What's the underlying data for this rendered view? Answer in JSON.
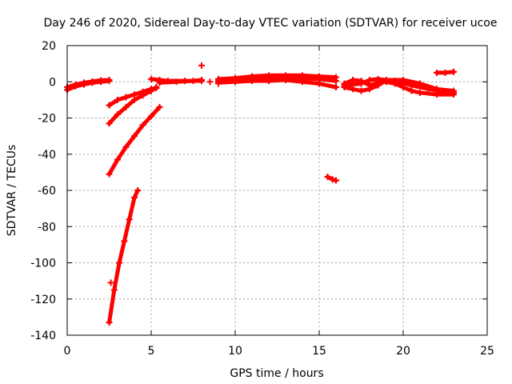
{
  "chart_data": {
    "type": "scatter",
    "title": "Day 246 of 2020, Sidereal Day-to-day VTEC variation (SDTVAR) for receiver ucoe",
    "xlabel": "GPS time / hours",
    "ylabel": "SDTVAR / TECUs",
    "xlim": [
      0,
      25
    ],
    "ylim": [
      -140,
      20
    ],
    "xticks": [
      0,
      5,
      10,
      15,
      20,
      25
    ],
    "yticks": [
      20,
      0,
      -20,
      -40,
      -60,
      -80,
      -100,
      -120,
      -140
    ],
    "grid": true,
    "marker_color": "#ff0000",
    "series": [
      {
        "segments": [
          [
            [
              0.0,
              -4.5
            ],
            [
              0.5,
              -2.5
            ],
            [
              1.0,
              -1.5
            ],
            [
              1.5,
              -0.5
            ],
            [
              2.0,
              0.0
            ],
            [
              2.5,
              0.5
            ]
          ],
          [
            [
              0.0,
              -3.0
            ],
            [
              0.5,
              -1.5
            ],
            [
              1.0,
              -0.5
            ],
            [
              1.5,
              0.2
            ],
            [
              2.0,
              0.8
            ],
            [
              2.5,
              1.0
            ]
          ],
          [
            [
              2.5,
              -13.0
            ],
            [
              3.0,
              -10.0
            ],
            [
              3.5,
              -8.5
            ],
            [
              4.0,
              -7.0
            ],
            [
              4.5,
              -5.5
            ],
            [
              5.0,
              -4.0
            ],
            [
              5.3,
              -3.5
            ]
          ],
          [
            [
              2.5,
              -23.0
            ],
            [
              3.0,
              -18.0
            ],
            [
              3.5,
              -14.0
            ],
            [
              4.0,
              -10.0
            ],
            [
              4.5,
              -7.5
            ],
            [
              5.0,
              -5.0
            ],
            [
              5.3,
              -3.0
            ]
          ],
          [
            [
              2.5,
              -51.0
            ],
            [
              3.0,
              -43.0
            ],
            [
              3.5,
              -36.0
            ],
            [
              4.0,
              -30.0
            ],
            [
              4.5,
              -24.0
            ],
            [
              5.0,
              -19.0
            ],
            [
              5.5,
              -14.0
            ]
          ],
          [
            [
              2.5,
              -133.0
            ],
            [
              2.8,
              -115.0
            ],
            [
              3.1,
              -100.0
            ],
            [
              3.4,
              -88.0
            ],
            [
              3.7,
              -76.0
            ],
            [
              4.0,
              -64.0
            ],
            [
              4.2,
              -60.0
            ]
          ],
          [
            [
              5.0,
              1.5
            ],
            [
              5.5,
              1.0
            ],
            [
              6.0,
              0.5
            ],
            [
              7.0,
              0.5
            ],
            [
              8.0,
              0.5
            ]
          ],
          [
            [
              5.5,
              -0.5
            ],
            [
              6.5,
              0.0
            ],
            [
              7.5,
              0.5
            ],
            [
              8.0,
              1.0
            ]
          ],
          [
            [
              9.0,
              0.5
            ],
            [
              10.0,
              1.0
            ],
            [
              11.0,
              1.5
            ],
            [
              12.0,
              2.0
            ],
            [
              13.0,
              2.5
            ],
            [
              14.0,
              2.0
            ],
            [
              15.0,
              1.5
            ],
            [
              16.0,
              0.5
            ]
          ],
          [
            [
              9.0,
              1.5
            ],
            [
              10.0,
              2.0
            ],
            [
              11.0,
              3.0
            ],
            [
              12.0,
              3.5
            ],
            [
              13.0,
              3.5
            ],
            [
              14.0,
              3.5
            ],
            [
              15.0,
              3.0
            ],
            [
              16.0,
              2.5
            ]
          ],
          [
            [
              9.0,
              -0.5
            ],
            [
              10.0,
              0.0
            ],
            [
              11.0,
              0.5
            ],
            [
              12.0,
              0.5
            ],
            [
              13.0,
              1.0
            ],
            [
              14.0,
              0.0
            ],
            [
              15.0,
              -1.0
            ],
            [
              16.0,
              -3.0
            ]
          ],
          [
            [
              15.5,
              -52.5
            ],
            [
              15.8,
              -54.0
            ],
            [
              16.0,
              -54.5
            ]
          ],
          [
            [
              16.5,
              -1.0
            ],
            [
              17.0,
              1.0
            ],
            [
              17.5,
              0.5
            ],
            [
              18.0,
              -2.0
            ],
            [
              18.5,
              -0.5
            ],
            [
              19.0,
              0.0
            ],
            [
              19.5,
              -1.0
            ],
            [
              20.0,
              -3.0
            ],
            [
              20.5,
              -5.0
            ],
            [
              21.0,
              -6.0
            ],
            [
              22.0,
              -7.0
            ],
            [
              23.0,
              -7.0
            ]
          ],
          [
            [
              16.5,
              -3.0
            ],
            [
              17.0,
              -4.0
            ],
            [
              17.5,
              -5.0
            ],
            [
              18.0,
              -4.0
            ],
            [
              18.5,
              -2.0
            ],
            [
              19.0,
              1.0
            ],
            [
              20.0,
              1.0
            ],
            [
              21.0,
              -1.0
            ],
            [
              22.0,
              -4.0
            ],
            [
              23.0,
              -5.0
            ]
          ],
          [
            [
              16.5,
              -2.0
            ],
            [
              17.5,
              -1.0
            ],
            [
              18.0,
              1.0
            ],
            [
              18.5,
              1.5
            ],
            [
              19.5,
              0.5
            ],
            [
              20.5,
              -2.0
            ],
            [
              21.5,
              -4.0
            ],
            [
              22.5,
              -5.5
            ],
            [
              23.0,
              -6.0
            ]
          ],
          [
            [
              22.0,
              5.0
            ],
            [
              22.5,
              5.0
            ],
            [
              23.0,
              5.5
            ]
          ]
        ],
        "points": [
          [
            8.0,
            9.0
          ],
          [
            8.5,
            0.0
          ],
          [
            2.6,
            -111.0
          ],
          [
            9.0,
            -1.0
          ]
        ]
      }
    ]
  }
}
